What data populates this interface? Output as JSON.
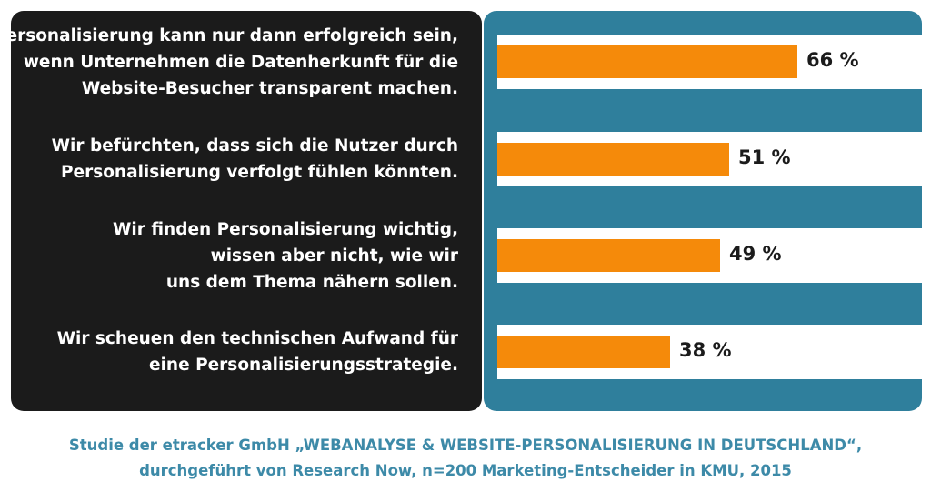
{
  "chart_data": {
    "type": "bar",
    "categories": [
      [
        "Personalisierung kann nur dann erfolgreich sein,",
        "wenn Unternehmen die Datenherkunft für die",
        "Website-Besucher transparent machen."
      ],
      [
        "Wir befürchten, dass sich die Nutzer durch",
        "Personalisierung verfolgt fühlen könnten."
      ],
      [
        "Wir finden Personalisierung wichtig,",
        "wissen aber nicht, wie wir",
        "uns dem Thema nähern sollen."
      ],
      [
        "Wir scheuen den technischen Aufwand für",
        "eine Personalisierungsstrategie."
      ]
    ],
    "values": [
      66,
      51,
      49,
      38
    ],
    "value_labels": [
      "66 %",
      "51 %",
      "49 %",
      "38 %"
    ],
    "orientation": "horizontal",
    "xlim": [
      0,
      100
    ],
    "title": "",
    "xlabel": "",
    "ylabel": ""
  },
  "footer": {
    "lines": [
      "Studie der etracker GmbH „WEBANALYSE & WEBSITE-PERSONALISIERUNG IN DEUTSCHLAND“,",
      "durchgeführt von Research Now, n=200 Marketing-Entscheider in KMU, 2015"
    ]
  },
  "colors": {
    "bar": "#f58a0a",
    "panel_left": "#1b1b1b",
    "panel_right": "#2f7f9c",
    "footer_text": "#3d8aa8"
  }
}
